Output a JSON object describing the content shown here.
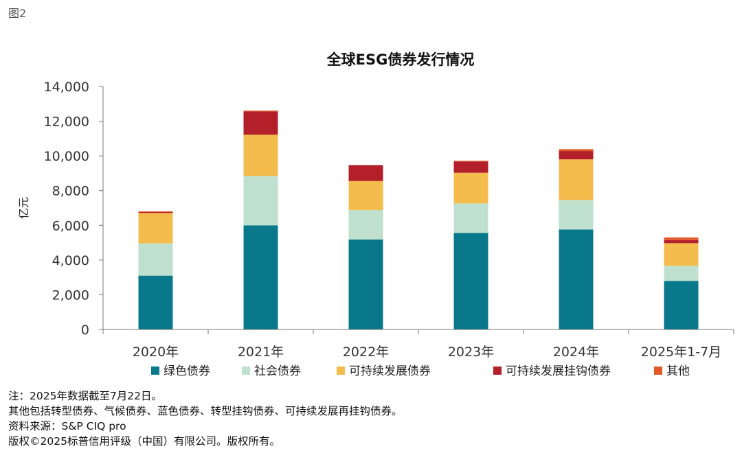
{
  "figure_label": "图2",
  "chart_data": {
    "type": "bar",
    "stacked": true,
    "title": "全球ESG债券发行情况",
    "ylabel": "亿元",
    "xlabel": "",
    "ylim": [
      0,
      14000
    ],
    "yticks": [
      0,
      2000,
      4000,
      6000,
      8000,
      10000,
      12000,
      14000
    ],
    "ytick_labels": [
      "0",
      "2,000",
      "4,000",
      "6,000",
      "8,000",
      "10,000",
      "12,000",
      "14,000"
    ],
    "categories": [
      "2020年",
      "2021年",
      "2022年",
      "2023年",
      "2024年",
      "2025年1-7月"
    ],
    "series": [
      {
        "name": "绿色债券",
        "color": "#08788a",
        "values": [
          3100,
          6000,
          5180,
          5560,
          5760,
          2800
        ]
      },
      {
        "name": "社会债券",
        "color": "#bfe0cf",
        "values": [
          1860,
          2840,
          1700,
          1700,
          1700,
          870
        ]
      },
      {
        "name": "可持续发展债券",
        "color": "#f3bc4c",
        "values": [
          1750,
          2380,
          1670,
          1770,
          2340,
          1300
        ]
      },
      {
        "name": "可持续发展挂钩债券",
        "color": "#b3202a",
        "values": [
          60,
          1340,
          920,
          650,
          480,
          180
        ]
      },
      {
        "name": "其他",
        "color": "#e35a2a",
        "values": [
          40,
          50,
          0,
          40,
          110,
          150
        ]
      }
    ],
    "grid": false,
    "legend_position": "bottom"
  },
  "notes": [
    "注：2025年数据截至7月22日。",
    "其他包括转型债券、气候债券、蓝色债券、转型挂钩债券、可持续发展再挂钩债券。",
    "资料来源：S&P CIQ pro",
    "版权©2025标普信用评级（中国）有限公司。版权所有。"
  ]
}
